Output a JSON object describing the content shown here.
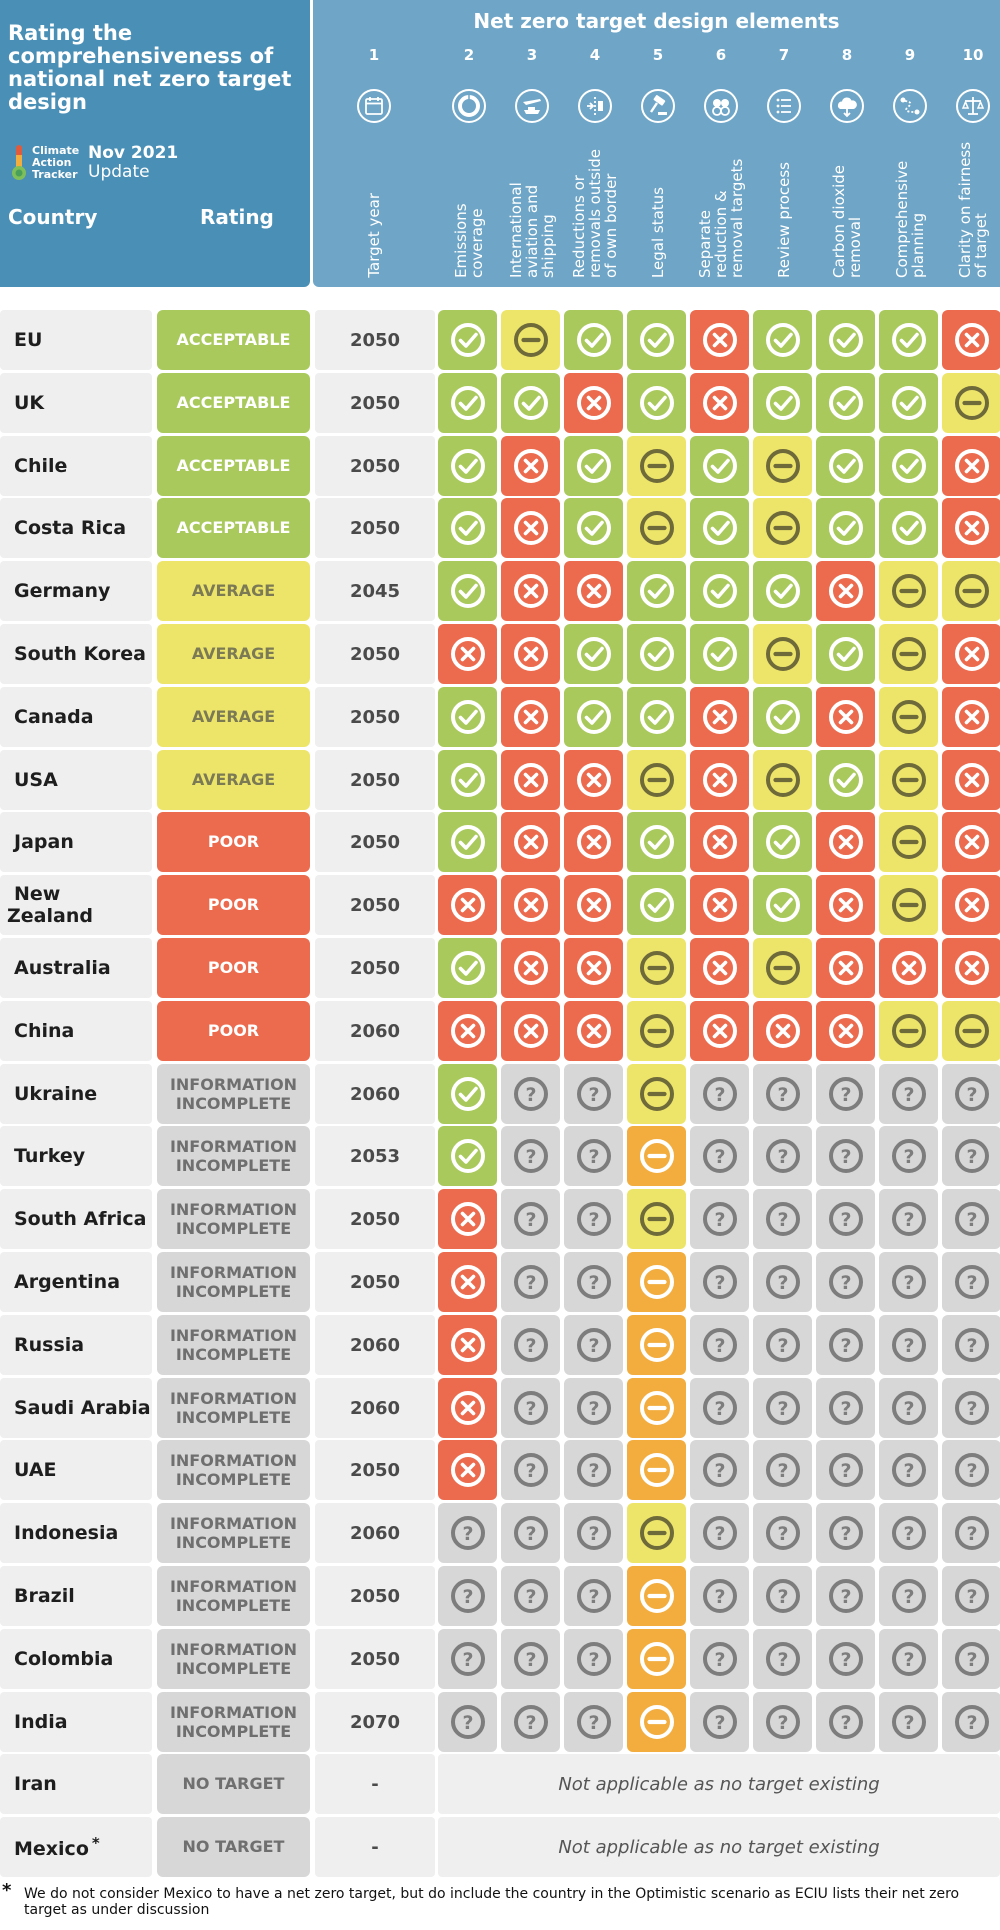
{
  "header": {
    "title": "Rating the comprehensiveness of national net zero target design",
    "logo_lines": [
      "Climate",
      "Action",
      "Tracker"
    ],
    "update_date": "Nov 2021",
    "update_label": "Update",
    "country_label": "Country",
    "rating_label": "Rating",
    "elements_title": "Net zero target design elements"
  },
  "columns": [
    {
      "num": "1",
      "label": "Target year",
      "icon": "calendar-icon"
    },
    {
      "num": "2",
      "label": "Emissions coverage",
      "icon": "donut-chart-icon"
    },
    {
      "num": "3",
      "label": "International aviation and shipping",
      "icon": "plane-ship-icon"
    },
    {
      "num": "4",
      "label": "Reductions or removals outside of own border",
      "icon": "border-arrow-icon"
    },
    {
      "num": "5",
      "label": "Legal status",
      "icon": "gavel-icon"
    },
    {
      "num": "6",
      "label": "Separate reduction & removal targets",
      "icon": "split-circles-icon"
    },
    {
      "num": "7",
      "label": "Review process",
      "icon": "checklist-icon"
    },
    {
      "num": "8",
      "label": "Carbon dioxide removal",
      "icon": "cloud-arrow-icon"
    },
    {
      "num": "9",
      "label": "Comprehensive planning",
      "icon": "route-plan-icon"
    },
    {
      "num": "10",
      "label": "Clarity on fairness of target",
      "icon": "scales-icon"
    }
  ],
  "ratings": {
    "ACCEPTABLE": {
      "text": "ACCEPTABLE",
      "color": "#a9c95c"
    },
    "AVERAGE": {
      "text": "AVERAGE",
      "color": "#ede56a"
    },
    "POOR": {
      "text": "POOR",
      "color": "#ec6a4d"
    },
    "INFO": {
      "text": "INFORMATION INCOMPLETE",
      "color": "#d7d7d7"
    },
    "NOTARGET": {
      "text": "NO TARGET",
      "color": "#d7d7d7"
    }
  },
  "cell_styles": {
    "A": {
      "meaning": "acceptable",
      "bg": "#a9c95c",
      "icon": "check-icon"
    },
    "N": {
      "meaning": "average",
      "bg": "#ede56a",
      "icon": "minus-icon"
    },
    "O": {
      "meaning": "average",
      "bg": "#f2ad3e",
      "icon": "minus-icon"
    },
    "P": {
      "meaning": "poor",
      "bg": "#ec6a4d",
      "icon": "cross-icon"
    },
    "U": {
      "meaning": "unknown",
      "bg": "#d7d7d7",
      "icon": "question-icon"
    }
  },
  "rows": [
    {
      "country": "EU",
      "rating": "ACCEPTABLE",
      "year": "2050",
      "cells": "ANAAPAAAP"
    },
    {
      "country": "UK",
      "rating": "ACCEPTABLE",
      "year": "2050",
      "cells": "AAPAPAAAN"
    },
    {
      "country": "Chile",
      "rating": "ACCEPTABLE",
      "year": "2050",
      "cells": "APANANAAP"
    },
    {
      "country": "Costa Rica",
      "rating": "ACCEPTABLE",
      "year": "2050",
      "cells": "APANANAAP"
    },
    {
      "country": "Germany",
      "rating": "AVERAGE",
      "year": "2045",
      "cells": "APPAAAPNN"
    },
    {
      "country": "South Korea",
      "rating": "AVERAGE",
      "year": "2050",
      "cells": "PPAAANANP"
    },
    {
      "country": "Canada",
      "rating": "AVERAGE",
      "year": "2050",
      "cells": "APAAPAPNP"
    },
    {
      "country": "USA",
      "rating": "AVERAGE",
      "year": "2050",
      "cells": "APPNPNANP"
    },
    {
      "country": "Japan",
      "rating": "POOR",
      "year": "2050",
      "cells": "APPAPAPNP"
    },
    {
      "country": "New Zealand",
      "rating": "POOR",
      "year": "2050",
      "cells": "PPPAPAPNP"
    },
    {
      "country": "Australia",
      "rating": "POOR",
      "year": "2050",
      "cells": "APPNPNPPP"
    },
    {
      "country": "China",
      "rating": "POOR",
      "year": "2060",
      "cells": "PPPNPPPNN"
    },
    {
      "country": "Ukraine",
      "rating": "INFO",
      "year": "2060",
      "cells": "AUUNUUUUU"
    },
    {
      "country": "Turkey",
      "rating": "INFO",
      "year": "2053",
      "cells": "AUUOUUUUU"
    },
    {
      "country": "South Africa",
      "rating": "INFO",
      "year": "2050",
      "cells": "PUUNUUUUU"
    },
    {
      "country": "Argentina",
      "rating": "INFO",
      "year": "2050",
      "cells": "PUUOUUUUU"
    },
    {
      "country": "Russia",
      "rating": "INFO",
      "year": "2060",
      "cells": "PUUOUUUUU"
    },
    {
      "country": "Saudi Arabia",
      "rating": "INFO",
      "year": "2060",
      "cells": "PUUOUUUUU"
    },
    {
      "country": "UAE",
      "rating": "INFO",
      "year": "2050",
      "cells": "PUUOUUUUU"
    },
    {
      "country": "Indonesia",
      "rating": "INFO",
      "year": "2060",
      "cells": "UUUNUUUUU"
    },
    {
      "country": "Brazil",
      "rating": "INFO",
      "year": "2050",
      "cells": "UUUOUUUUU"
    },
    {
      "country": "Colombia",
      "rating": "INFO",
      "year": "2050",
      "cells": "UUUOUUUUU"
    },
    {
      "country": "India",
      "rating": "INFO",
      "year": "2070",
      "cells": "UUUOUUUUU"
    },
    {
      "country": "Iran",
      "rating": "NOTARGET",
      "year": "-",
      "cells": "",
      "note": "Not applicable as no target existing"
    },
    {
      "country": "Mexico",
      "sup": "*",
      "rating": "NOTARGET",
      "year": "-",
      "cells": "",
      "note": "Not applicable as no target existing"
    }
  ],
  "footnote": {
    "mark": "*",
    "text": "We do not consider Mexico to have a net zero target, but do include the country in the Optimistic scenario as ECIU lists their net zero target as under discussion"
  }
}
